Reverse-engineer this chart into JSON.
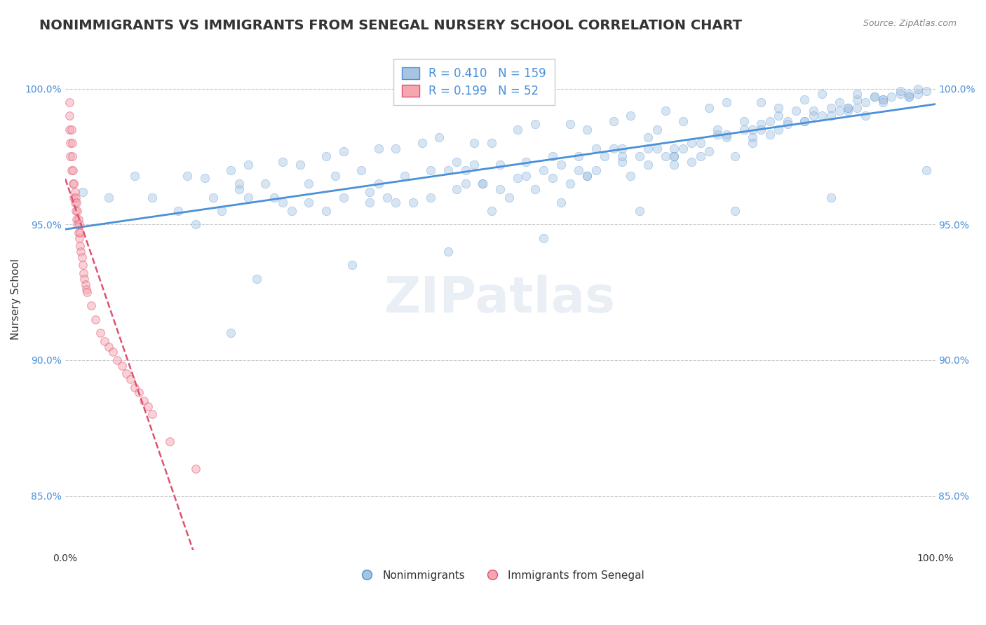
{
  "title": "NONIMMIGRANTS VS IMMIGRANTS FROM SENEGAL NURSERY SCHOOL CORRELATION CHART",
  "source": "Source: ZipAtlas.com",
  "xlabel": "",
  "ylabel": "Nursery School",
  "xlim": [
    0.0,
    1.0
  ],
  "ylim": [
    0.83,
    1.015
  ],
  "yticks": [
    0.85,
    0.9,
    0.95,
    1.0
  ],
  "ytick_labels": [
    "85.0%",
    "90.0%",
    "95.0%",
    "100.0%"
  ],
  "xticks": [
    0.0,
    0.1,
    0.2,
    0.3,
    0.4,
    0.5,
    0.6,
    0.7,
    0.8,
    0.9,
    1.0
  ],
  "xtick_labels": [
    "0.0%",
    "",
    "",
    "",
    "",
    "",
    "",
    "",
    "",
    "",
    "100.0%"
  ],
  "blue_R": 0.41,
  "blue_N": 159,
  "pink_R": 0.199,
  "pink_N": 52,
  "blue_color": "#A8C4E0",
  "pink_color": "#F4A7B0",
  "blue_line_color": "#4A90D9",
  "pink_line_color": "#E05070",
  "legend_label_blue": "Nonimmigrants",
  "legend_label_pink": "Immigrants from Senegal",
  "watermark": "ZIPatlas",
  "title_fontsize": 14,
  "axis_label_fontsize": 11,
  "tick_fontsize": 10,
  "legend_fontsize": 12,
  "blue_marker_size": 80,
  "pink_marker_size": 70,
  "blue_alpha": 0.45,
  "pink_alpha": 0.5,
  "background_color": "#FFFFFF",
  "grid_color": "#CCCCCC",
  "grid_linestyle": "--",
  "blue_scatter_x": [
    0.02,
    0.08,
    0.19,
    0.21,
    0.28,
    0.32,
    0.36,
    0.38,
    0.42,
    0.44,
    0.46,
    0.47,
    0.49,
    0.5,
    0.52,
    0.54,
    0.55,
    0.57,
    0.58,
    0.59,
    0.6,
    0.62,
    0.63,
    0.64,
    0.65,
    0.66,
    0.67,
    0.68,
    0.69,
    0.7,
    0.71,
    0.72,
    0.73,
    0.74,
    0.75,
    0.76,
    0.77,
    0.78,
    0.79,
    0.8,
    0.81,
    0.82,
    0.83,
    0.84,
    0.85,
    0.86,
    0.87,
    0.88,
    0.89,
    0.9,
    0.91,
    0.92,
    0.93,
    0.94,
    0.95,
    0.96,
    0.97,
    0.98,
    0.99,
    0.05,
    0.18,
    0.25,
    0.3,
    0.35,
    0.4,
    0.45,
    0.48,
    0.51,
    0.53,
    0.56,
    0.61,
    0.64,
    0.67,
    0.7,
    0.73,
    0.76,
    0.79,
    0.82,
    0.85,
    0.88,
    0.91,
    0.94,
    0.97,
    0.22,
    0.33,
    0.44,
    0.55,
    0.66,
    0.77,
    0.88,
    0.99,
    0.15,
    0.26,
    0.37,
    0.48,
    0.59,
    0.7,
    0.81,
    0.92,
    0.13,
    0.24,
    0.35,
    0.46,
    0.57,
    0.68,
    0.79,
    0.9,
    0.17,
    0.28,
    0.39,
    0.5,
    0.61,
    0.72,
    0.83,
    0.94,
    0.2,
    0.31,
    0.42,
    0.53,
    0.64,
    0.75,
    0.86,
    0.97,
    0.23,
    0.34,
    0.45,
    0.56,
    0.67,
    0.78,
    0.89,
    0.16,
    0.27,
    0.38,
    0.49,
    0.6,
    0.71,
    0.82,
    0.93,
    0.14,
    0.25,
    0.36,
    0.47,
    0.58,
    0.69,
    0.8,
    0.91,
    0.19,
    0.3,
    0.41,
    0.52,
    0.63,
    0.74,
    0.85,
    0.96,
    0.21,
    0.32,
    0.43,
    0.54,
    0.65,
    0.76,
    0.87,
    0.98,
    0.1,
    0.2,
    0.6,
    0.7,
    0.8,
    0.9
  ],
  "blue_scatter_y": [
    0.962,
    0.968,
    0.91,
    0.96,
    0.958,
    0.96,
    0.965,
    0.958,
    0.96,
    0.97,
    0.965,
    0.972,
    0.955,
    0.963,
    0.967,
    0.963,
    0.97,
    0.958,
    0.965,
    0.975,
    0.968,
    0.975,
    0.978,
    0.973,
    0.968,
    0.975,
    0.978,
    0.985,
    0.975,
    0.972,
    0.978,
    0.973,
    0.98,
    0.977,
    0.983,
    0.982,
    0.975,
    0.985,
    0.982,
    0.987,
    0.988,
    0.99,
    0.988,
    0.992,
    0.988,
    0.992,
    0.99,
    0.993,
    0.995,
    0.993,
    0.996,
    0.995,
    0.997,
    0.996,
    0.997,
    0.998,
    0.997,
    0.998,
    0.999,
    0.96,
    0.955,
    0.958,
    0.955,
    0.962,
    0.958,
    0.963,
    0.965,
    0.96,
    0.968,
    0.967,
    0.97,
    0.975,
    0.972,
    0.978,
    0.975,
    0.983,
    0.98,
    0.985,
    0.988,
    0.99,
    0.993,
    0.996,
    0.998,
    0.93,
    0.935,
    0.94,
    0.945,
    0.955,
    0.955,
    0.96,
    0.97,
    0.95,
    0.955,
    0.96,
    0.965,
    0.97,
    0.975,
    0.983,
    0.99,
    0.955,
    0.96,
    0.958,
    0.97,
    0.972,
    0.978,
    0.985,
    0.992,
    0.96,
    0.965,
    0.968,
    0.972,
    0.978,
    0.98,
    0.987,
    0.995,
    0.963,
    0.968,
    0.97,
    0.973,
    0.978,
    0.985,
    0.99,
    0.997,
    0.965,
    0.97,
    0.973,
    0.975,
    0.982,
    0.988,
    0.992,
    0.967,
    0.972,
    0.978,
    0.98,
    0.985,
    0.988,
    0.993,
    0.997,
    0.968,
    0.973,
    0.978,
    0.98,
    0.987,
    0.992,
    0.995,
    0.998,
    0.97,
    0.975,
    0.98,
    0.985,
    0.988,
    0.993,
    0.996,
    0.999,
    0.972,
    0.977,
    0.982,
    0.987,
    0.99,
    0.995,
    0.998,
    1.0,
    0.96,
    0.965,
    0.968,
    0.975,
    0.985,
    0.993
  ],
  "pink_scatter_x": [
    0.005,
    0.005,
    0.005,
    0.006,
    0.006,
    0.007,
    0.007,
    0.008,
    0.008,
    0.009,
    0.009,
    0.01,
    0.01,
    0.011,
    0.011,
    0.012,
    0.012,
    0.013,
    0.013,
    0.014,
    0.014,
    0.015,
    0.015,
    0.016,
    0.016,
    0.017,
    0.017,
    0.018,
    0.019,
    0.02,
    0.021,
    0.022,
    0.023,
    0.024,
    0.025,
    0.03,
    0.035,
    0.04,
    0.045,
    0.05,
    0.055,
    0.06,
    0.065,
    0.07,
    0.075,
    0.08,
    0.085,
    0.09,
    0.095,
    0.1,
    0.12,
    0.15
  ],
  "pink_scatter_y": [
    0.985,
    0.99,
    0.995,
    0.975,
    0.98,
    0.985,
    0.97,
    0.975,
    0.98,
    0.965,
    0.97,
    0.96,
    0.965,
    0.958,
    0.962,
    0.955,
    0.96,
    0.952,
    0.958,
    0.95,
    0.955,
    0.947,
    0.952,
    0.945,
    0.95,
    0.942,
    0.947,
    0.94,
    0.938,
    0.935,
    0.932,
    0.93,
    0.928,
    0.926,
    0.925,
    0.92,
    0.915,
    0.91,
    0.907,
    0.905,
    0.903,
    0.9,
    0.898,
    0.895,
    0.893,
    0.89,
    0.888,
    0.885,
    0.883,
    0.88,
    0.87,
    0.86
  ]
}
